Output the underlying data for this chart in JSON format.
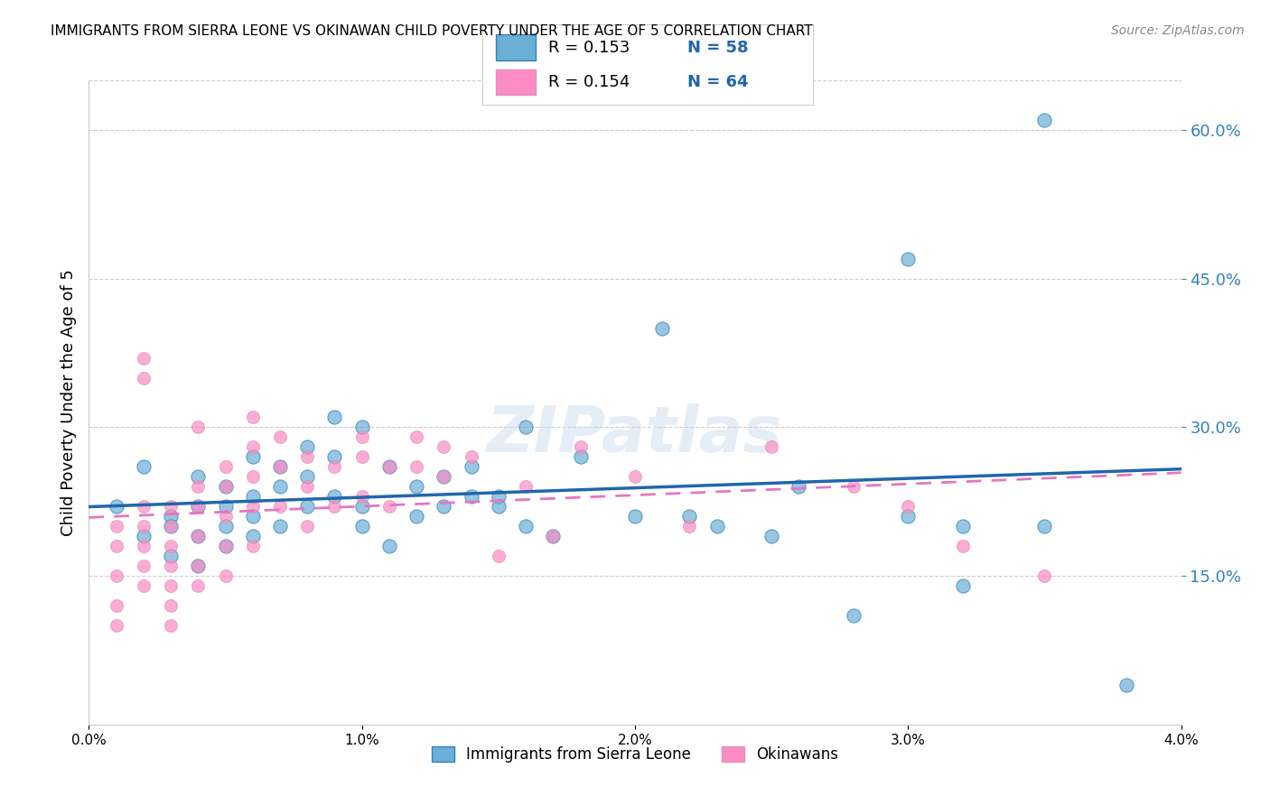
{
  "title": "IMMIGRANTS FROM SIERRA LEONE VS OKINAWAN CHILD POVERTY UNDER THE AGE OF 5 CORRELATION CHART",
  "source": "Source: ZipAtlas.com",
  "xlabel_bottom": "",
  "ylabel": "Child Poverty Under the Age of 5",
  "legend_label_1": "Immigrants from Sierra Leone",
  "legend_label_2": "Okinawans",
  "R1": 0.153,
  "N1": 58,
  "R2": 0.154,
  "N2": 64,
  "color1": "#6baed6",
  "color2": "#fd8bc4",
  "color1_dark": "#3182bd",
  "color2_dark": "#e377c2",
  "xlim": [
    0.0,
    0.04
  ],
  "ylim": [
    0.0,
    0.65
  ],
  "x_ticks": [
    0.0,
    0.01,
    0.02,
    0.03,
    0.04
  ],
  "x_tick_labels": [
    "0.0%",
    "1.0%",
    "2.0%",
    "3.0%",
    "4.0%"
  ],
  "y_ticks_right": [
    0.15,
    0.3,
    0.45,
    0.6
  ],
  "y_tick_labels_right": [
    "15.0%",
    "30.0%",
    "45.0%",
    "60.0%"
  ],
  "watermark": "ZIPatlas",
  "blue_scatter_x": [
    0.001,
    0.002,
    0.002,
    0.003,
    0.003,
    0.003,
    0.004,
    0.004,
    0.004,
    0.004,
    0.005,
    0.005,
    0.005,
    0.005,
    0.006,
    0.006,
    0.006,
    0.006,
    0.007,
    0.007,
    0.007,
    0.008,
    0.008,
    0.008,
    0.009,
    0.009,
    0.009,
    0.01,
    0.01,
    0.01,
    0.011,
    0.011,
    0.012,
    0.012,
    0.013,
    0.013,
    0.014,
    0.014,
    0.015,
    0.015,
    0.016,
    0.016,
    0.017,
    0.018,
    0.02,
    0.021,
    0.022,
    0.023,
    0.025,
    0.026,
    0.028,
    0.03,
    0.032,
    0.035,
    0.038,
    0.03,
    0.035,
    0.032
  ],
  "blue_scatter_y": [
    0.22,
    0.26,
    0.19,
    0.21,
    0.2,
    0.17,
    0.22,
    0.25,
    0.19,
    0.16,
    0.2,
    0.24,
    0.22,
    0.18,
    0.23,
    0.27,
    0.21,
    0.19,
    0.24,
    0.26,
    0.2,
    0.25,
    0.28,
    0.22,
    0.27,
    0.31,
    0.23,
    0.3,
    0.22,
    0.2,
    0.26,
    0.18,
    0.24,
    0.21,
    0.25,
    0.22,
    0.26,
    0.23,
    0.23,
    0.22,
    0.3,
    0.2,
    0.19,
    0.27,
    0.21,
    0.4,
    0.21,
    0.2,
    0.19,
    0.24,
    0.11,
    0.21,
    0.14,
    0.2,
    0.04,
    0.47,
    0.61,
    0.2
  ],
  "pink_scatter_x": [
    0.001,
    0.001,
    0.001,
    0.001,
    0.001,
    0.002,
    0.002,
    0.002,
    0.002,
    0.002,
    0.002,
    0.002,
    0.003,
    0.003,
    0.003,
    0.003,
    0.003,
    0.003,
    0.003,
    0.004,
    0.004,
    0.004,
    0.004,
    0.004,
    0.004,
    0.005,
    0.005,
    0.005,
    0.005,
    0.005,
    0.006,
    0.006,
    0.006,
    0.006,
    0.006,
    0.007,
    0.007,
    0.007,
    0.008,
    0.008,
    0.008,
    0.009,
    0.009,
    0.01,
    0.01,
    0.01,
    0.011,
    0.011,
    0.012,
    0.012,
    0.013,
    0.013,
    0.014,
    0.015,
    0.016,
    0.017,
    0.018,
    0.02,
    0.022,
    0.025,
    0.028,
    0.03,
    0.032,
    0.035
  ],
  "pink_scatter_y": [
    0.2,
    0.18,
    0.15,
    0.12,
    0.1,
    0.37,
    0.35,
    0.22,
    0.2,
    0.18,
    0.16,
    0.14,
    0.22,
    0.2,
    0.18,
    0.16,
    0.14,
    0.12,
    0.1,
    0.3,
    0.24,
    0.22,
    0.19,
    0.16,
    0.14,
    0.26,
    0.24,
    0.21,
    0.18,
    0.15,
    0.31,
    0.28,
    0.25,
    0.22,
    0.18,
    0.29,
    0.26,
    0.22,
    0.27,
    0.24,
    0.2,
    0.26,
    0.22,
    0.29,
    0.27,
    0.23,
    0.26,
    0.22,
    0.29,
    0.26,
    0.28,
    0.25,
    0.27,
    0.17,
    0.24,
    0.19,
    0.28,
    0.25,
    0.2,
    0.28,
    0.24,
    0.22,
    0.18,
    0.15
  ]
}
